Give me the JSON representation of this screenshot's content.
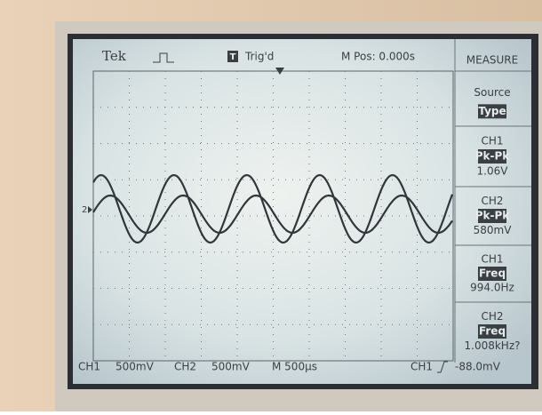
{
  "header": {
    "brand": "Tek",
    "trigger_icon": "T",
    "trigger_status": "Trig'd",
    "position": "M Pos: 0.000s"
  },
  "menu": {
    "title": "MEASURE",
    "items": [
      {
        "line1": "Source",
        "line2": "Type"
      },
      {
        "line1": "CH1",
        "line2": "Pk-Pk",
        "line3": "1.06V"
      },
      {
        "line1": "CH2",
        "line2": "Pk-Pk",
        "line3": "580mV"
      },
      {
        "line1": "CH1",
        "line2": "Freq",
        "line3": "994.0Hz"
      },
      {
        "line1": "CH2",
        "line2": "Freq",
        "line3": "1.008kHz?"
      }
    ]
  },
  "marker": "2",
  "footer": {
    "ch1_label": "CH1",
    "ch1_scale": "500mV",
    "ch2_label": "CH2",
    "ch2_scale": "500mV",
    "timebase": "M 500µs",
    "trigger_source": "CH1",
    "trigger_level": "-88.0mV"
  }
}
